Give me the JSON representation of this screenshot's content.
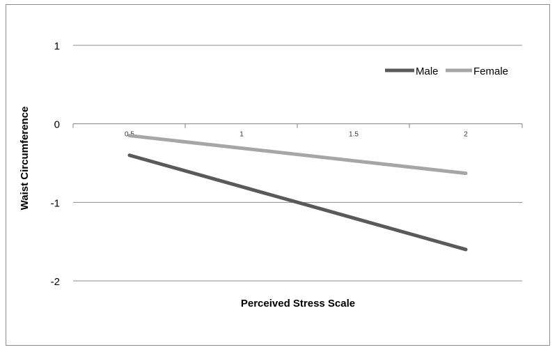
{
  "chart_data": {
    "type": "line",
    "xlabel": "Perceived Stress Scale",
    "ylabel": "Waist Circumference",
    "x": [
      0.5,
      2
    ],
    "x_ticks": [
      "0.5",
      "1",
      "1.5",
      "2"
    ],
    "y_ticks": [
      "1",
      "0",
      "-1",
      "-2"
    ],
    "xlim": [
      0.5,
      2
    ],
    "ylim": [
      -2,
      1
    ],
    "grid": "horizontal",
    "legend_position": "top-right",
    "series": [
      {
        "name": "Male",
        "color": "#5a5a5a",
        "values": [
          -0.4,
          -1.6
        ]
      },
      {
        "name": "Female",
        "color": "#a6a6a6",
        "values": [
          -0.15,
          -0.63
        ]
      }
    ]
  }
}
